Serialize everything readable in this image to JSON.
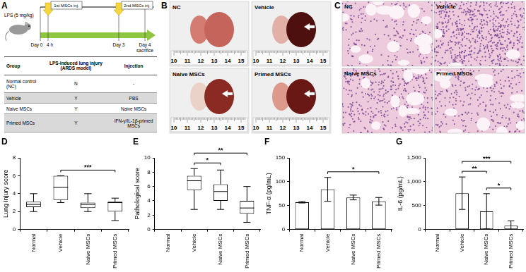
{
  "panel_a": {
    "label": "A",
    "timeline": {
      "treatment": "LPS (5 mg/kg)",
      "injections": [
        "1st MSCs inj.",
        "2nd MSCs inj."
      ],
      "day_labels": [
        "Day 0",
        "4 h",
        "Day 3",
        "Day 4"
      ],
      "end_label": "sacrifice"
    },
    "table": {
      "header": [
        "Group",
        "LPS-induced lung injury (ARDS model)",
        "Injection"
      ],
      "rows": [
        [
          "Normal control (NC)",
          "N",
          "-"
        ],
        [
          "Vehicle",
          "Y",
          "PBS"
        ],
        [
          "Naive MSCs",
          "Y",
          "Naive MSCs"
        ],
        [
          "Primed MSCs",
          "Y",
          "IFN-γ/IL-1β-primed MSCs"
        ]
      ]
    }
  },
  "panel_b": {
    "label": "B",
    "photos": [
      "NC",
      "Vehicle",
      "Naive MSCs",
      "Primed MSCs"
    ],
    "ruler": [
      "10",
      "11",
      "12",
      "13",
      "14",
      "15"
    ]
  },
  "panel_c": {
    "label": "C",
    "images": [
      "NC",
      "Vehicle",
      "Naive MSCs",
      "Primed MSCs"
    ]
  },
  "chart_data": [
    {
      "panel": "D",
      "type": "box",
      "y_label": "Lung injury score",
      "categories": [
        "Normal",
        "Vehicle",
        "Naive MSCs",
        "Primed MSCs"
      ],
      "boxes": [
        {
          "min": 2,
          "q1": 2.5,
          "median": 2.8,
          "q3": 3.1,
          "max": 4
        },
        {
          "min": 3,
          "q1": 3.3,
          "median": 4.7,
          "q3": 6,
          "max": 6
        },
        {
          "min": 2,
          "q1": 2.4,
          "median": 2.8,
          "q3": 3,
          "max": 4
        },
        {
          "min": 1,
          "q1": 2,
          "median": 3,
          "q3": 3.1,
          "max": 3.5
        }
      ],
      "color": "#ffffff",
      "ylim": [
        0,
        8
      ],
      "yticks": [
        0,
        2,
        4,
        6,
        8
      ],
      "grid": false,
      "annotations": [
        {
          "from": "Vehicle",
          "to": "Primed MSCs",
          "text": "***"
        }
      ]
    },
    {
      "panel": "E",
      "type": "box",
      "y_label": "Pathological score",
      "categories": [
        "Normal",
        "Vehicle",
        "Naive MSCs",
        "Primed MSCs"
      ],
      "boxes": [
        null,
        {
          "min": 2.8,
          "q1": 5.5,
          "median": 6.8,
          "q3": 7.5,
          "max": 8.5
        },
        {
          "min": 2.8,
          "q1": 4,
          "median": 5.3,
          "q3": 6.3,
          "max": 8.3
        },
        {
          "min": 1,
          "q1": 2.2,
          "median": 3,
          "q3": 4,
          "max": 6
        }
      ],
      "color": "#ffffff",
      "ylim": [
        0,
        10
      ],
      "yticks": [
        0,
        2,
        4,
        6,
        8,
        10
      ],
      "grid": false,
      "annotations": [
        {
          "from": "Vehicle",
          "to": "Naive MSCs",
          "text": "*"
        },
        {
          "from": "Vehicle",
          "to": "Primed MSCs",
          "text": "**"
        }
      ]
    },
    {
      "panel": "F",
      "type": "bar",
      "y_label": "TNF-α (pg/mL)",
      "categories": [
        "Normal",
        "Vehicle",
        "Naive MSCs",
        "Primed MSCs"
      ],
      "values": [
        57,
        84,
        67,
        59
      ],
      "errors": [
        1.5,
        25,
        5,
        8
      ],
      "color": "#ffffff",
      "ylim": [
        0,
        150
      ],
      "yticks": [
        0,
        50,
        100,
        150
      ],
      "grid": false,
      "annotations": [
        {
          "from": "Vehicle",
          "to": "Primed MSCs",
          "text": "*"
        }
      ]
    },
    {
      "panel": "G",
      "type": "bar",
      "y_label": "IL-6 (pg/mL)",
      "categories": [
        "Normal",
        "Vehicle",
        "Naive MSCs",
        "Primed MSCs"
      ],
      "values": [
        0,
        760,
        380,
        80
      ],
      "errors": [
        null,
        340,
        370,
        100
      ],
      "color": "#ffffff",
      "ylim": [
        0,
        1500
      ],
      "yticks": [
        0,
        500,
        {
          "value": 1000,
          "label": "1,000"
        },
        {
          "value": 1500,
          "label": "1,500"
        }
      ],
      "grid": false,
      "annotations": [
        {
          "from": "Vehicle",
          "to": "Naive MSCs",
          "text": "**"
        },
        {
          "from": "Vehicle",
          "to": "Primed MSCs",
          "text": "***"
        },
        {
          "from": "Naive MSCs",
          "to": "Primed MSCs",
          "text": "*"
        }
      ]
    }
  ]
}
